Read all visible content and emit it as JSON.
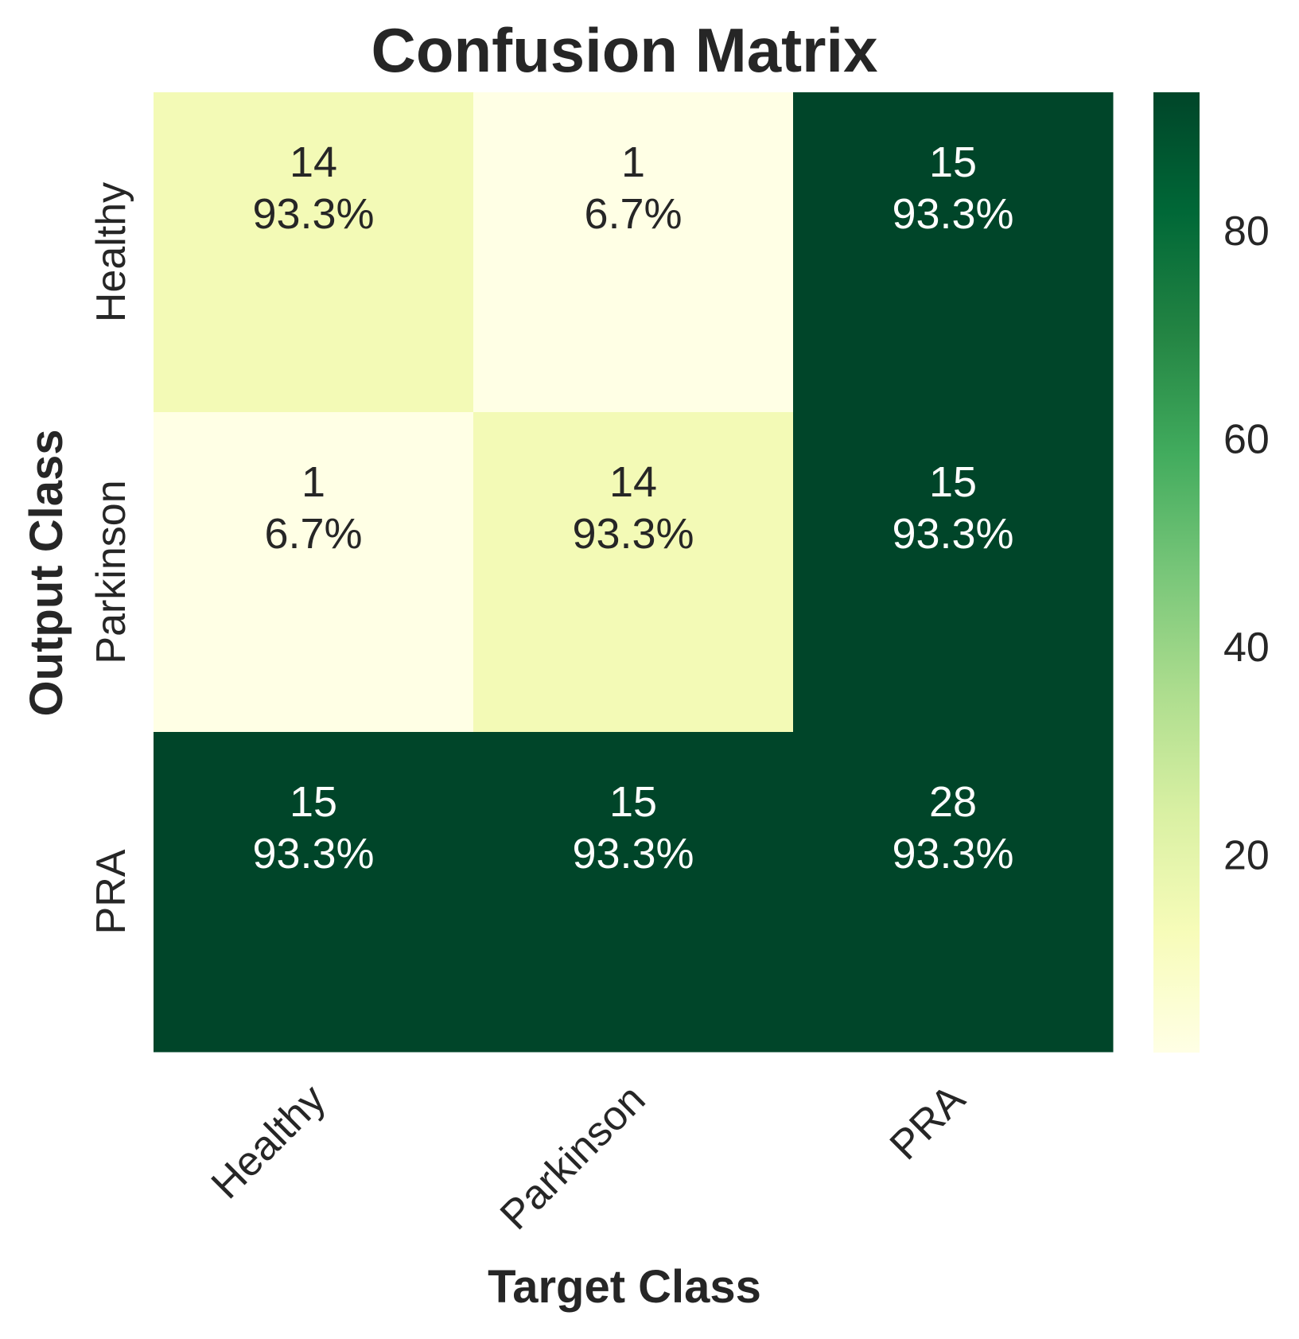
{
  "chart_data": {
    "type": "heatmap",
    "title": "Confusion Matrix",
    "xlabel": "Target Class",
    "ylabel": "Output Class",
    "x_categories": [
      "Healthy",
      "Parkinson",
      "PRA"
    ],
    "y_categories": [
      "Healthy",
      "Parkinson",
      "PRA"
    ],
    "counts": [
      [
        14,
        1,
        15
      ],
      [
        1,
        14,
        15
      ],
      [
        15,
        15,
        28
      ]
    ],
    "percentages": [
      [
        "93.3%",
        "6.7%",
        "93.3%"
      ],
      [
        "6.7%",
        "93.3%",
        "93.3%"
      ],
      [
        "93.3%",
        "93.3%",
        "93.3%"
      ]
    ],
    "color_values": [
      [
        14,
        1,
        93.3
      ],
      [
        1,
        14,
        93.3
      ],
      [
        93.3,
        93.3,
        93.3
      ]
    ],
    "colormap": "YlGn",
    "colorbar": {
      "range": [
        1,
        93.3
      ],
      "ticks": [
        20,
        40,
        60,
        80
      ]
    },
    "grid": false,
    "text_color_dark": "#262626",
    "text_color_light": "#ffffff"
  }
}
